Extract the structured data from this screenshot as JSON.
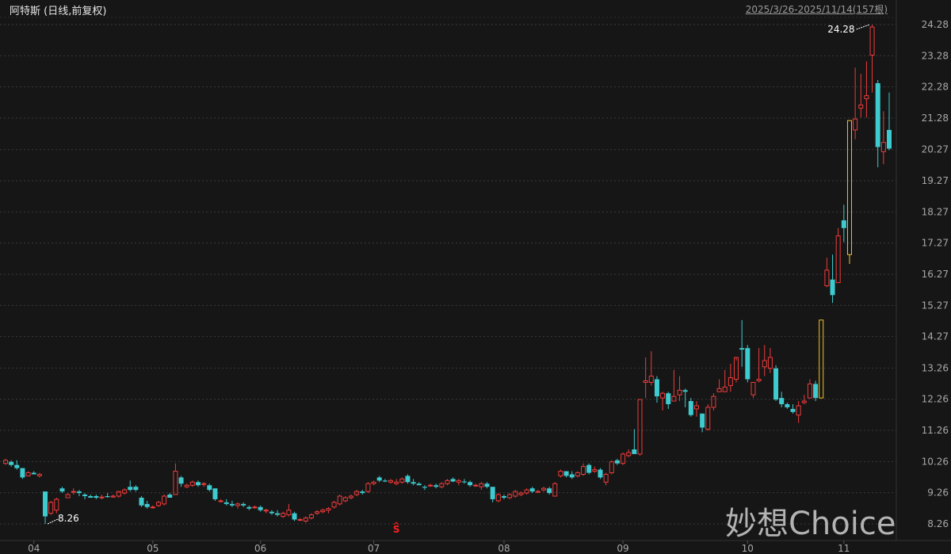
{
  "header": {
    "title": "阿特斯 (日线,前复权)",
    "range": "2025/3/26-2025/11/14(157根)"
  },
  "watermark": "妙想Choice",
  "colors": {
    "up": "#ee3b3b",
    "down": "#3ecbcf",
    "highlight": "#f2c12e",
    "grid": "#3a3a3a",
    "axis_text": "#a8a8a8",
    "signal": "#ff2020"
  },
  "chart_data": {
    "type": "candlestick",
    "title": "阿特斯 (日线,前复权)",
    "ylim": [
      8.26,
      24.28
    ],
    "grid": true,
    "y_ticks": [
      "24.28",
      "23.28",
      "22.28",
      "21.28",
      "20.27",
      "19.27",
      "18.27",
      "17.27",
      "16.27",
      "15.27",
      "14.27",
      "13.26",
      "12.26",
      "11.26",
      "10.26",
      "9.26",
      "8.26"
    ],
    "month_ticks": [
      {
        "label": "04",
        "index": 5
      },
      {
        "label": "05",
        "index": 26
      },
      {
        "label": "06",
        "index": 45
      },
      {
        "label": "07",
        "index": 65
      },
      {
        "label": "08",
        "index": 88
      },
      {
        "label": "09",
        "index": 109
      },
      {
        "label": "10",
        "index": 131
      },
      {
        "label": "11",
        "index": 148
      }
    ],
    "max_label": {
      "value": "24.28",
      "index": 153
    },
    "min_label": {
      "value": "8.26",
      "index": 7
    },
    "signal": {
      "label": "S",
      "index": 69
    },
    "highlight_indices": [
      144,
      149
    ],
    "ohlc": [
      [
        10.2,
        10.35,
        10.15,
        10.3
      ],
      [
        10.25,
        10.3,
        10.1,
        10.15
      ],
      [
        10.15,
        10.3,
        10.0,
        10.05
      ],
      [
        10.05,
        10.05,
        9.7,
        9.75
      ],
      [
        9.8,
        9.95,
        9.8,
        9.9
      ],
      [
        9.9,
        9.95,
        9.85,
        9.85
      ],
      [
        9.8,
        9.9,
        9.75,
        9.85
      ],
      [
        9.3,
        9.3,
        8.26,
        8.5
      ],
      [
        8.6,
        9.0,
        8.55,
        8.95
      ],
      [
        8.7,
        9.1,
        8.6,
        9.05
      ],
      [
        9.4,
        9.45,
        9.25,
        9.3
      ],
      [
        9.1,
        9.25,
        9.1,
        9.2
      ],
      [
        9.3,
        9.4,
        9.2,
        9.3
      ],
      [
        9.3,
        9.35,
        9.15,
        9.25
      ],
      [
        9.2,
        9.25,
        9.05,
        9.15
      ],
      [
        9.15,
        9.2,
        9.1,
        9.1
      ],
      [
        9.15,
        9.2,
        9.05,
        9.1
      ],
      [
        9.1,
        9.2,
        9.05,
        9.12
      ],
      [
        9.15,
        9.25,
        9.1,
        9.12
      ],
      [
        9.12,
        9.2,
        9.1,
        9.15
      ],
      [
        9.15,
        9.25,
        9.1,
        9.3
      ],
      [
        9.25,
        9.4,
        9.2,
        9.35
      ],
      [
        9.45,
        9.65,
        9.3,
        9.35
      ],
      [
        9.45,
        9.5,
        9.3,
        9.35
      ],
      [
        9.1,
        9.15,
        8.8,
        8.85
      ],
      [
        8.9,
        9.0,
        8.75,
        8.8
      ],
      [
        8.78,
        8.85,
        8.75,
        8.8
      ],
      [
        8.85,
        9.0,
        8.8,
        8.95
      ],
      [
        8.9,
        9.2,
        8.85,
        9.15
      ],
      [
        9.2,
        9.25,
        9.1,
        9.1
      ],
      [
        9.2,
        10.2,
        9.2,
        9.95
      ],
      [
        9.75,
        9.8,
        9.45,
        9.55
      ],
      [
        9.45,
        9.55,
        9.4,
        9.5
      ],
      [
        9.5,
        9.65,
        9.45,
        9.6
      ],
      [
        9.6,
        9.65,
        9.45,
        9.5
      ],
      [
        9.55,
        9.6,
        9.45,
        9.55
      ],
      [
        9.5,
        9.55,
        9.3,
        9.35
      ],
      [
        9.4,
        9.4,
        9.0,
        9.05
      ],
      [
        9.0,
        9.05,
        8.95,
        9.0
      ],
      [
        8.95,
        9.05,
        8.85,
        8.9
      ],
      [
        8.9,
        9.0,
        8.8,
        8.85
      ],
      [
        8.85,
        8.95,
        8.75,
        8.9
      ],
      [
        8.9,
        8.95,
        8.8,
        8.85
      ],
      [
        8.8,
        8.85,
        8.7,
        8.75
      ],
      [
        8.8,
        8.85,
        8.75,
        8.8
      ],
      [
        8.8,
        8.85,
        8.65,
        8.7
      ],
      [
        8.7,
        8.75,
        8.6,
        8.7
      ],
      [
        8.65,
        8.7,
        8.55,
        8.6
      ],
      [
        8.6,
        8.7,
        8.5,
        8.55
      ],
      [
        8.5,
        8.65,
        8.45,
        8.6
      ],
      [
        8.55,
        8.9,
        8.5,
        8.7
      ],
      [
        8.6,
        8.65,
        8.35,
        8.4
      ],
      [
        8.4,
        8.45,
        8.35,
        8.4
      ],
      [
        8.35,
        8.5,
        8.3,
        8.45
      ],
      [
        8.45,
        8.6,
        8.4,
        8.55
      ],
      [
        8.6,
        8.7,
        8.55,
        8.65
      ],
      [
        8.65,
        8.75,
        8.6,
        8.7
      ],
      [
        8.7,
        8.8,
        8.6,
        8.75
      ],
      [
        8.8,
        9.0,
        8.75,
        8.95
      ],
      [
        8.9,
        9.2,
        8.85,
        9.15
      ],
      [
        9.0,
        9.15,
        8.95,
        9.1
      ],
      [
        9.1,
        9.2,
        9.05,
        9.15
      ],
      [
        9.2,
        9.35,
        9.15,
        9.3
      ],
      [
        9.3,
        9.35,
        9.2,
        9.25
      ],
      [
        9.3,
        9.6,
        9.25,
        9.55
      ],
      [
        9.55,
        9.65,
        9.5,
        9.6
      ],
      [
        9.75,
        9.8,
        9.6,
        9.65
      ],
      [
        9.65,
        9.7,
        9.6,
        9.62
      ],
      [
        9.6,
        9.7,
        9.55,
        9.65
      ],
      [
        9.55,
        9.7,
        9.5,
        9.6
      ],
      [
        9.6,
        9.75,
        9.55,
        9.7
      ],
      [
        9.8,
        9.85,
        9.55,
        9.6
      ],
      [
        9.6,
        9.7,
        9.5,
        9.55
      ],
      [
        9.55,
        9.6,
        9.5,
        9.5
      ],
      [
        9.45,
        9.5,
        9.35,
        9.42
      ],
      [
        9.5,
        9.55,
        9.45,
        9.5
      ],
      [
        9.5,
        9.55,
        9.4,
        9.45
      ],
      [
        9.45,
        9.6,
        9.4,
        9.55
      ],
      [
        9.55,
        9.7,
        9.5,
        9.65
      ],
      [
        9.7,
        9.75,
        9.6,
        9.62
      ],
      [
        9.6,
        9.7,
        9.5,
        9.65
      ],
      [
        9.62,
        9.7,
        9.55,
        9.6
      ],
      [
        9.6,
        9.65,
        9.45,
        9.5
      ],
      [
        9.5,
        9.55,
        9.45,
        9.5
      ],
      [
        9.45,
        9.6,
        9.35,
        9.55
      ],
      [
        9.55,
        9.6,
        9.4,
        9.45
      ],
      [
        9.45,
        9.45,
        8.95,
        9.05
      ],
      [
        9.0,
        9.25,
        8.95,
        9.2
      ],
      [
        9.15,
        9.2,
        9.05,
        9.1
      ],
      [
        9.1,
        9.25,
        9.05,
        9.2
      ],
      [
        9.15,
        9.35,
        9.1,
        9.3
      ],
      [
        9.2,
        9.3,
        9.15,
        9.25
      ],
      [
        9.25,
        9.4,
        9.2,
        9.35
      ],
      [
        9.4,
        9.45,
        9.25,
        9.3
      ],
      [
        9.3,
        9.35,
        9.25,
        9.3
      ],
      [
        9.35,
        9.45,
        9.3,
        9.4
      ],
      [
        9.4,
        9.45,
        9.2,
        9.25
      ],
      [
        9.15,
        9.6,
        9.15,
        9.55
      ],
      [
        9.8,
        10.0,
        9.75,
        9.95
      ],
      [
        9.95,
        9.95,
        9.75,
        9.8
      ],
      [
        9.85,
        9.95,
        9.7,
        9.75
      ],
      [
        9.8,
        9.95,
        9.75,
        9.9
      ],
      [
        9.85,
        10.2,
        9.8,
        10.1
      ],
      [
        10.15,
        10.2,
        9.85,
        9.9
      ],
      [
        9.95,
        10.1,
        9.9,
        10.0
      ],
      [
        10.0,
        10.05,
        9.7,
        9.75
      ],
      [
        9.6,
        9.9,
        9.5,
        9.85
      ],
      [
        9.9,
        10.3,
        9.85,
        10.25
      ],
      [
        10.3,
        10.35,
        10.15,
        10.2
      ],
      [
        10.2,
        10.55,
        10.15,
        10.5
      ],
      [
        10.45,
        10.65,
        10.4,
        10.55
      ],
      [
        10.65,
        11.3,
        10.5,
        10.5
      ],
      [
        10.5,
        12.25,
        10.45,
        12.25
      ],
      [
        12.8,
        13.6,
        12.3,
        12.85
      ],
      [
        12.8,
        13.8,
        12.7,
        13.0
      ],
      [
        12.9,
        13.0,
        12.15,
        12.35
      ],
      [
        12.3,
        12.5,
        11.9,
        12.45
      ],
      [
        12.45,
        12.5,
        11.95,
        12.1
      ],
      [
        12.2,
        13.2,
        12.2,
        12.35
      ],
      [
        12.4,
        13.0,
        12.2,
        12.55
      ],
      [
        12.55,
        12.6,
        12.0,
        12.5
      ],
      [
        12.2,
        12.3,
        11.7,
        11.75
      ],
      [
        11.95,
        12.2,
        11.7,
        12.05
      ],
      [
        11.8,
        11.8,
        11.2,
        11.35
      ],
      [
        11.3,
        12.1,
        11.25,
        12.0
      ],
      [
        12.0,
        12.45,
        11.9,
        12.35
      ],
      [
        12.5,
        12.9,
        12.5,
        12.6
      ],
      [
        12.5,
        13.2,
        12.5,
        12.65
      ],
      [
        12.7,
        13.4,
        12.5,
        12.95
      ],
      [
        12.9,
        13.5,
        12.8,
        13.6
      ],
      [
        13.9,
        14.8,
        13.3,
        13.85
      ],
      [
        13.9,
        14.0,
        12.8,
        12.9
      ],
      [
        12.4,
        12.8,
        12.3,
        12.8
      ],
      [
        12.85,
        13.9,
        12.8,
        12.9
      ],
      [
        13.3,
        14.0,
        13.0,
        13.5
      ],
      [
        13.25,
        13.9,
        13.1,
        13.6
      ],
      [
        13.25,
        13.35,
        12.2,
        12.25
      ],
      [
        12.3,
        12.5,
        12.0,
        12.1
      ],
      [
        12.1,
        12.15,
        11.95,
        12.0
      ],
      [
        11.95,
        12.1,
        11.8,
        11.85
      ],
      [
        11.75,
        12.2,
        11.5,
        12.05
      ],
      [
        12.15,
        12.4,
        12.1,
        12.2
      ],
      [
        12.3,
        12.9,
        12.3,
        12.75
      ],
      [
        12.75,
        12.85,
        12.2,
        12.3
      ],
      [
        12.3,
        14.8,
        12.3,
        14.8
      ],
      [
        15.9,
        16.8,
        15.85,
        16.4
      ],
      [
        16.1,
        16.9,
        15.35,
        15.6
      ],
      [
        16.0,
        17.75,
        16.0,
        17.5
      ],
      [
        18.0,
        18.5,
        17.3,
        17.75
      ],
      [
        16.9,
        21.2,
        16.6,
        21.2
      ],
      [
        20.9,
        22.9,
        20.6,
        21.25
      ],
      [
        21.6,
        22.7,
        21.3,
        21.7
      ],
      [
        21.9,
        23.1,
        21.3,
        22.0
      ],
      [
        23.3,
        24.28,
        22.1,
        24.2
      ],
      [
        22.4,
        22.5,
        19.7,
        20.35
      ],
      [
        20.2,
        21.5,
        19.8,
        20.5
      ],
      [
        20.9,
        22.1,
        20.25,
        20.3
      ]
    ]
  }
}
